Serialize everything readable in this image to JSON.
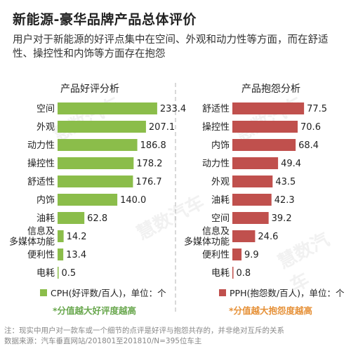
{
  "title": "新能源-豪华品牌产品总体评价",
  "subtitle": "用户对于新能源的好评点集中在空间、外观和动力性等方面，而在舒适性、操控性和内饰等方面存在抱怨",
  "chart_data": [
    {
      "type": "bar",
      "orientation": "horizontal",
      "title": "产品好评分析",
      "categories": [
        "空间",
        "外观",
        "动力性",
        "操控性",
        "舒适性",
        "内饰",
        "油耗",
        "信息及\n多媒体功能",
        "便利性",
        "电耗"
      ],
      "series": [
        {
          "name": "CPH(好评数/百人)，单位：个",
          "values": [
            233.4,
            207.1,
            186.8,
            178.2,
            176.7,
            140.0,
            62.8,
            14.2,
            13.4,
            0.5
          ]
        }
      ],
      "value_labels": [
        "233.4",
        "207.1",
        "186.8",
        "178.2",
        "176.7",
        "140.0",
        "62.8",
        "14.2",
        "13.4",
        "0.5"
      ],
      "xlim": [
        0,
        250
      ],
      "grid": false,
      "legend": "bottom",
      "color": "#8bbd4a",
      "note": "*分值越大好评度越高"
    },
    {
      "type": "bar",
      "orientation": "horizontal",
      "title": "产品抱怨分析",
      "categories": [
        "舒适性",
        "操控性",
        "内饰",
        "动力性",
        "外观",
        "油耗",
        "空间",
        "信息及\n多媒体功能",
        "便利性",
        "电耗"
      ],
      "series": [
        {
          "name": "PPH(抱怨数/百人)，单位：个",
          "values": [
            77.5,
            70.6,
            68.4,
            49.4,
            43.5,
            42.3,
            39.2,
            24.6,
            9.9,
            0.8
          ]
        }
      ],
      "value_labels": [
        "77.5",
        "70.6",
        "68.4",
        "49.4",
        "43.5",
        "42.3",
        "39.2",
        "24.6",
        "9.9",
        "0.8"
      ],
      "xlim": [
        0,
        85
      ],
      "grid": false,
      "legend": "bottom",
      "color": "#c0504d",
      "note": "*分值越大抱怨度越高"
    }
  ],
  "watermark": "慧数汽车",
  "footer": {
    "note": "注：现实中用户对一款车或一个细节的点评是好评与抱怨共存的，并非绝对互斥的关系",
    "source": "数据来源：汽车垂直网站/201801至201810/N=395位车主"
  }
}
